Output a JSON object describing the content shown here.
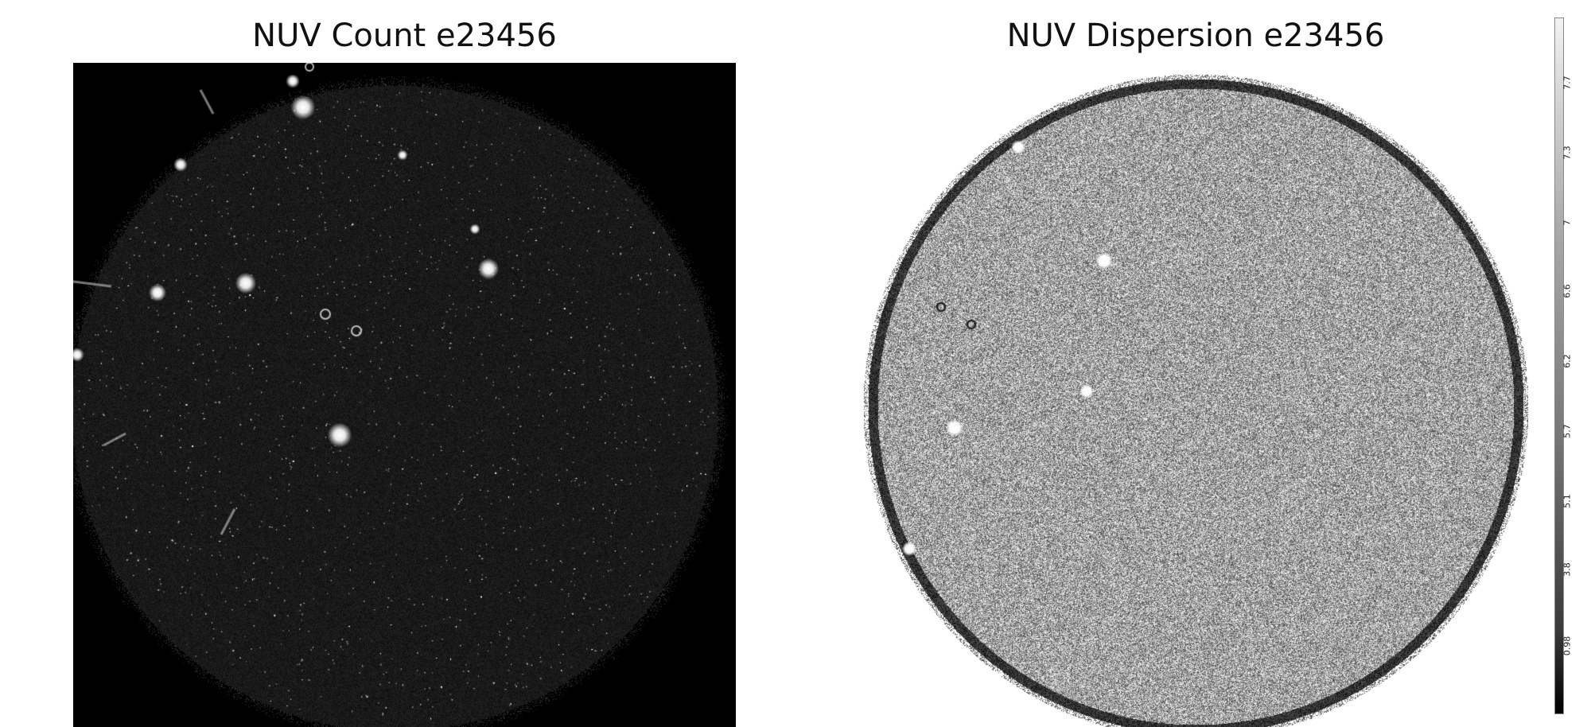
{
  "left_panel": {
    "title": "NUV Count e23456"
  },
  "right_panel": {
    "title": "NUV Dispersion e23456"
  },
  "colorbar": {
    "ticks": [
      "7.7",
      "7.3",
      "7",
      "6.6",
      "6.2",
      "5.7",
      "5.1",
      "3.8",
      "0.98"
    ],
    "colors": {
      "low": "#000000",
      "high": "#f4f4f4"
    }
  }
}
